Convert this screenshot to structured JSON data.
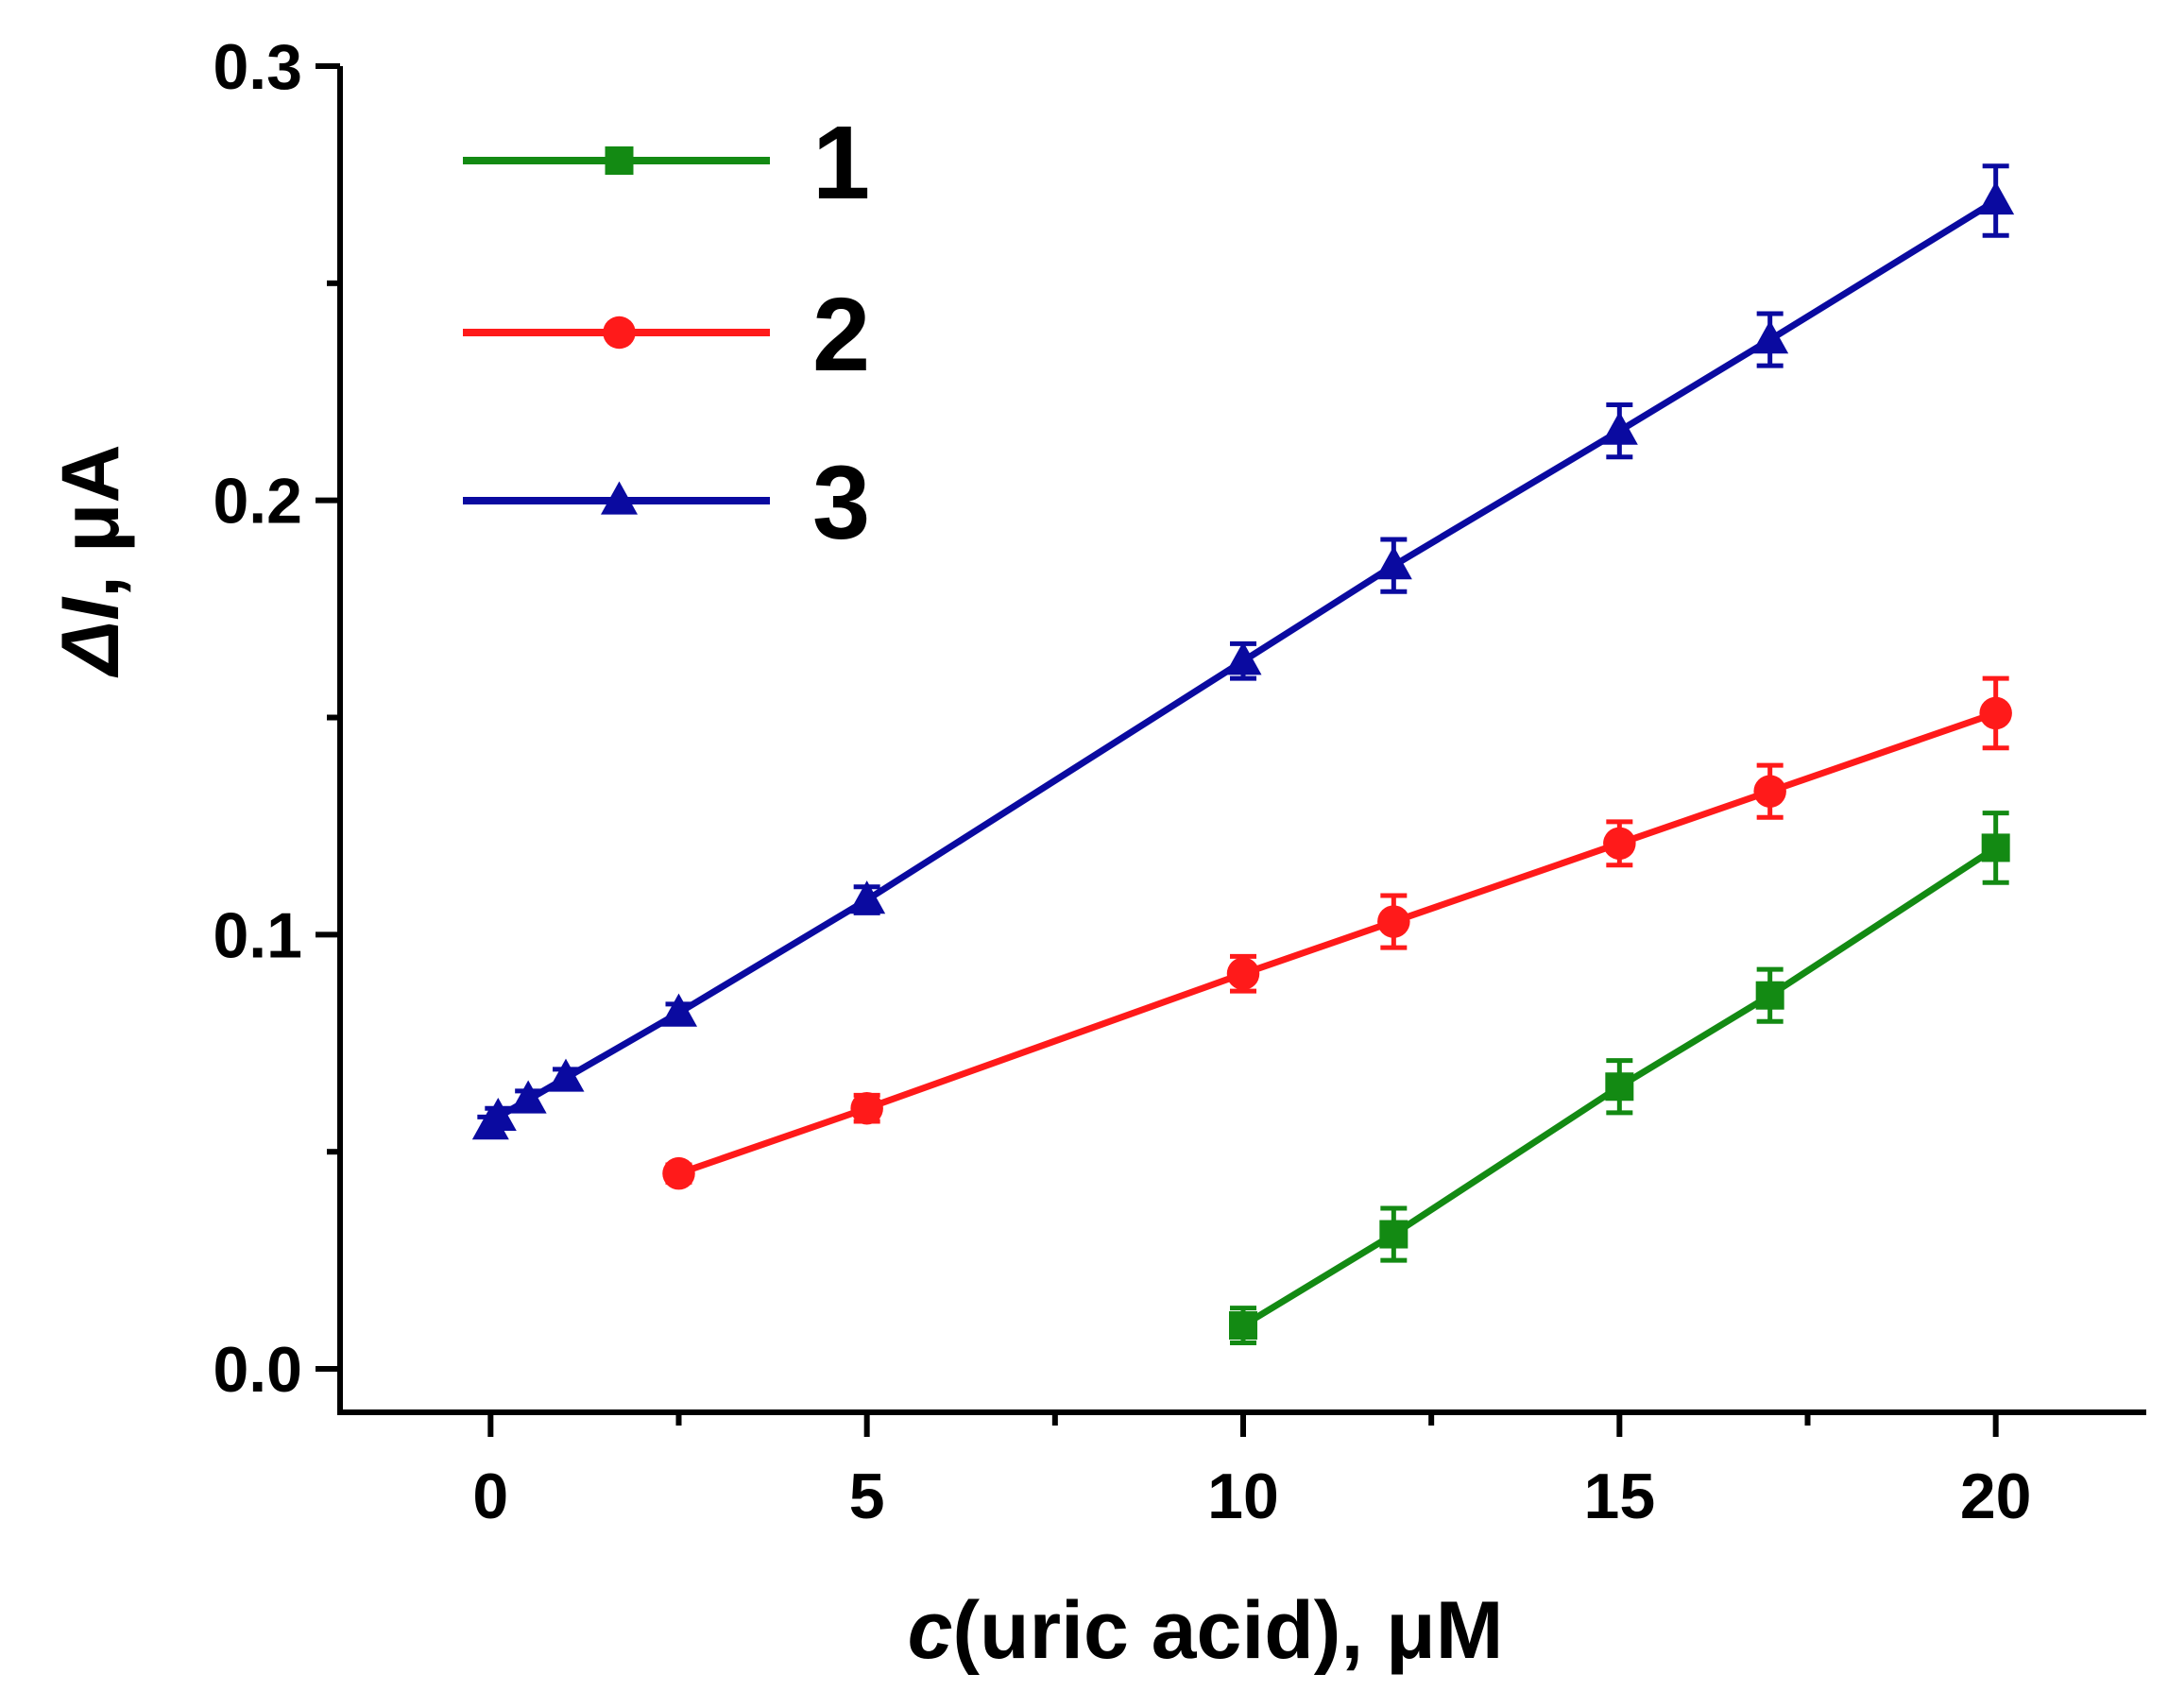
{
  "chart_data": {
    "type": "line",
    "xlabel_prefix": "c",
    "xlabel_rest": "(uric acid), μM",
    "ylabel_prefix": "ΔI",
    "ylabel_rest": ", μA",
    "xlim": [
      -2,
      22
    ],
    "ylim": [
      -0.01,
      0.3
    ],
    "xticks": [
      0,
      5,
      10,
      15,
      20
    ],
    "xtick_labels": [
      "0",
      "5",
      "10",
      "15",
      "20"
    ],
    "xminor": [
      2.5,
      7.5,
      12.5,
      17.5
    ],
    "yticks": [
      0.0,
      0.1,
      0.2,
      0.3
    ],
    "ytick_labels": [
      "0.0",
      "0.1",
      "0.2",
      "0.3"
    ],
    "yminor": [
      0.05,
      0.15,
      0.25
    ],
    "legend_position": "top-left",
    "series": [
      {
        "name": "1",
        "color": "#138a13",
        "marker": "square",
        "x": [
          10,
          12,
          15,
          17,
          20
        ],
        "y": [
          0.01,
          0.031,
          0.065,
          0.086,
          0.12
        ],
        "err": [
          0.004,
          0.006,
          0.006,
          0.006,
          0.008
        ]
      },
      {
        "name": "2",
        "color": "#ff1a1a",
        "marker": "circle",
        "x": [
          2.5,
          5,
          10,
          12,
          15,
          17,
          20
        ],
        "y": [
          0.045,
          0.06,
          0.091,
          0.103,
          0.121,
          0.133,
          0.151
        ],
        "err": [
          0.002,
          0.003,
          0.004,
          0.006,
          0.005,
          0.006,
          0.008
        ]
      },
      {
        "name": "3",
        "color": "#0a0aa0",
        "marker": "triangle",
        "x": [
          0,
          0.1,
          0.5,
          1,
          2.5,
          5,
          10,
          12,
          15,
          17,
          20
        ],
        "y": [
          0.056,
          0.058,
          0.062,
          0.067,
          0.082,
          0.108,
          0.163,
          0.185,
          0.216,
          0.237,
          0.269
        ],
        "err": [
          0.002,
          0.002,
          0.002,
          0.002,
          0.002,
          0.003,
          0.004,
          0.006,
          0.006,
          0.006,
          0.008
        ]
      }
    ]
  }
}
